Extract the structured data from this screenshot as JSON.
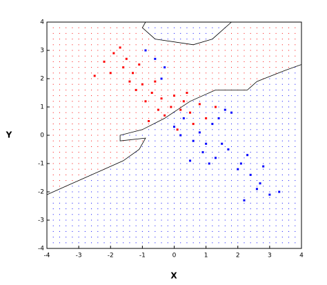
{
  "chart_data": {
    "type": "scatter",
    "x_label": "X",
    "y_label": "Y",
    "xlim": [
      -4,
      4
    ],
    "ylim": [
      -4,
      4
    ],
    "xticks": [
      -4,
      -3,
      -2,
      -1,
      0,
      1,
      2,
      3,
      4
    ],
    "yticks": [
      -4,
      -3,
      -2,
      -1,
      0,
      1,
      2,
      3,
      4
    ],
    "background_grid_step": 0.2,
    "region_polygon": {
      "color": "#ff0000",
      "other_color": "#0000ff",
      "x": [
        -4,
        -3.4,
        -2.8,
        -2.2,
        -1.6,
        -1.1,
        -0.9,
        -1.7,
        -1.7,
        -1.0,
        -0.3,
        0.5,
        1.3,
        2.3,
        2.6,
        3.5,
        4,
        4,
        1.8,
        1.2,
        0.6,
        -0.6,
        -1.0,
        -0.9,
        -4
      ],
      "y": [
        -2.1,
        -1.8,
        -1.5,
        -1.2,
        -0.9,
        -0.5,
        -0.1,
        -0.2,
        0,
        0.2,
        0.6,
        1.2,
        1.6,
        1.6,
        1.9,
        2.3,
        2.5,
        4,
        4,
        3.4,
        3.2,
        3.4,
        3.8,
        4,
        4
      ]
    },
    "series": [
      {
        "color": "#ff0000",
        "x": [
          -2.2,
          -1.9,
          -1.6,
          -1.3,
          -1.0,
          -0.7,
          -0.4,
          -0.1,
          0.2,
          0.5,
          0.8,
          -2.0,
          -1.5,
          -1.2,
          -0.9,
          -0.6,
          -0.3,
          0.0,
          0.3,
          0.6,
          1.0,
          1.3,
          -1.7,
          -1.1,
          -0.5,
          0.1,
          -2.5,
          -1.4,
          -0.8,
          0.4
        ],
        "values": [
          2.6,
          2.9,
          2.4,
          2.2,
          1.8,
          1.5,
          1.3,
          1.0,
          0.9,
          0.8,
          1.1,
          2.2,
          2.7,
          1.6,
          1.2,
          1.9,
          0.7,
          1.4,
          1.2,
          0.4,
          0.6,
          1.0,
          3.1,
          2.5,
          0.9,
          0.2,
          2.1,
          1.9,
          0.5,
          1.5
        ]
      },
      {
        "color": "#0000ff",
        "x": [
          -0.9,
          -0.6,
          -0.3,
          0.0,
          0.3,
          0.6,
          0.9,
          1.2,
          1.5,
          1.8,
          2.1,
          2.4,
          2.7,
          3.0,
          0.5,
          0.8,
          1.1,
          1.4,
          1.7,
          2.0,
          2.3,
          2.6,
          0.2,
          1.0,
          1.6,
          2.2,
          2.8,
          -0.4,
          1.3,
          3.3
        ],
        "values": [
          3.0,
          2.7,
          2.4,
          0.3,
          0.6,
          -0.2,
          -0.6,
          0.4,
          -0.3,
          0.8,
          -1.0,
          -1.4,
          -1.7,
          -2.1,
          -0.9,
          0.1,
          -1.0,
          0.6,
          -0.5,
          -1.2,
          -0.7,
          -1.9,
          0.0,
          -0.3,
          0.9,
          -2.3,
          -1.1,
          2.0,
          -0.8,
          -2.0
        ]
      }
    ]
  }
}
